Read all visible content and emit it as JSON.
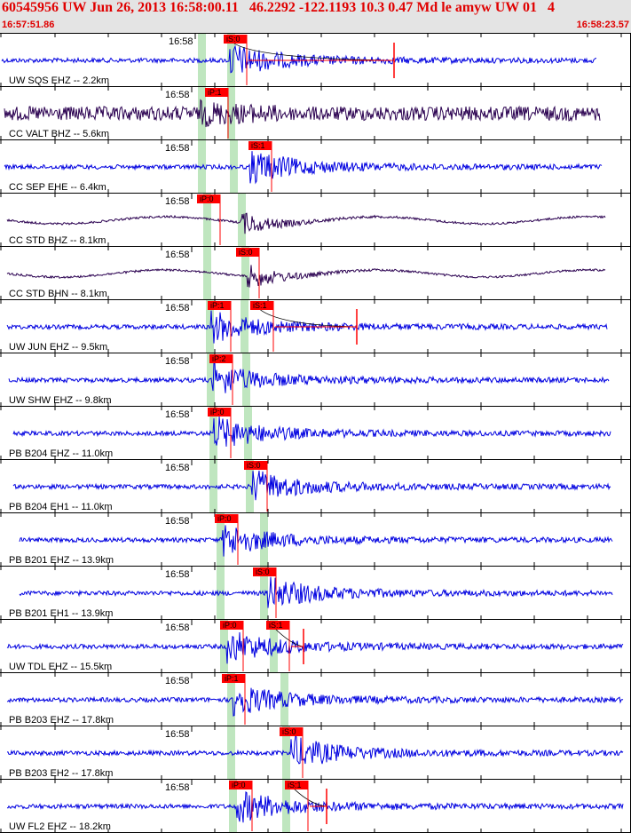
{
  "header": {
    "title": "60545956 UW Jun 26, 2013 16:58:00.11   46.2292 -122.1193 10.3 0.47 Md le amyw UW 01   4",
    "start_time": "16:57:51.86",
    "end_time": "16:58:23.57"
  },
  "colors": {
    "trace_blue": "#0000e0",
    "trace_purple": "#2a0050",
    "pick_red": "#ff0000",
    "band_green": "#bfe6bf"
  },
  "tick_label": "16:58",
  "traces": [
    {
      "label": "UW SQS EHZ -- 2.2km",
      "color": "blue",
      "picks": [
        {
          "text": "iS:0"
        }
      ],
      "coda": true
    },
    {
      "label": "CC VALT BHZ -- 5.6km",
      "color": "purple",
      "picks": [
        {
          "text": "iP:1"
        }
      ]
    },
    {
      "label": "CC SEP EHE -- 6.4km",
      "color": "blue",
      "picks": [
        {
          "text": "iS:1"
        }
      ]
    },
    {
      "label": "CC STD BHZ -- 8.1km",
      "color": "purple",
      "picks": [
        {
          "text": "iP:0"
        }
      ]
    },
    {
      "label": "CC STD BHN -- 8.1km",
      "color": "purple",
      "picks": [
        {
          "text": "iS:0"
        }
      ]
    },
    {
      "label": "UW JUN EHZ -- 9.5km",
      "color": "blue",
      "picks": [
        {
          "text": "iP:1"
        },
        {
          "text": "iS:1"
        }
      ],
      "coda": true
    },
    {
      "label": "UW SHW EHZ -- 9.8km",
      "color": "blue",
      "picks": [
        {
          "text": "iP:2"
        }
      ]
    },
    {
      "label": "PB B204 EHZ -- 11.0km",
      "color": "blue",
      "picks": [
        {
          "text": "iP:0"
        }
      ]
    },
    {
      "label": "PB B204 EH1 -- 11.0km",
      "color": "blue",
      "picks": [
        {
          "text": "iS:0"
        }
      ]
    },
    {
      "label": "PB B201 EHZ -- 13.9km",
      "color": "blue",
      "picks": [
        {
          "text": "iP:0"
        }
      ]
    },
    {
      "label": "PB B201 EH1 -- 13.9km",
      "color": "blue",
      "picks": [
        {
          "text": "iS:0"
        }
      ]
    },
    {
      "label": "UW TDL EHZ -- 15.5km",
      "color": "blue",
      "picks": [
        {
          "text": "iP:0"
        },
        {
          "text": "iS:1"
        }
      ],
      "coda": true
    },
    {
      "label": "PB B203 EHZ -- 17.8km",
      "color": "blue",
      "picks": [
        {
          "text": "iP:1"
        }
      ]
    },
    {
      "label": "PB B203 EH2 -- 17.8km",
      "color": "blue",
      "picks": [
        {
          "text": "iS:0"
        }
      ]
    },
    {
      "label": "UW FL2 EHZ -- 18.2km",
      "color": "blue",
      "picks": [
        {
          "text": "iP:0"
        },
        {
          "text": "iS:1"
        }
      ],
      "coda": true
    }
  ]
}
